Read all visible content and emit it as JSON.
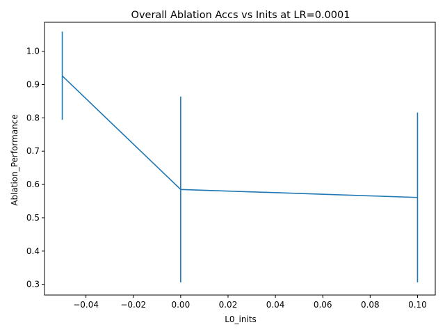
{
  "chart_data": {
    "type": "line",
    "title": "Overall Ablation Accs vs Inits at LR=0.0001",
    "xlabel": "L0_inits",
    "ylabel": "Ablation_Performance",
    "xlim": [
      -0.0575,
      0.1075
    ],
    "ylim": [
      0.268,
      1.087
    ],
    "xticks": [
      -0.04,
      -0.02,
      0.0,
      0.02,
      0.04,
      0.06,
      0.08,
      0.1
    ],
    "xtick_labels": [
      "−0.04",
      "−0.02",
      "0.00",
      "0.02",
      "0.04",
      "0.06",
      "0.08",
      "0.10"
    ],
    "yticks": [
      0.3,
      0.4,
      0.5,
      0.6,
      0.7,
      0.8,
      0.9,
      1.0
    ],
    "ytick_labels": [
      "0.3",
      "0.4",
      "0.5",
      "0.6",
      "0.7",
      "0.8",
      "0.9",
      "1.0"
    ],
    "grid": false,
    "series": [
      {
        "x": [
          -0.05,
          0.0,
          0.1
        ],
        "y": [
          0.926,
          0.585,
          0.561
        ],
        "yerr_low": [
          0.794,
          0.306,
          0.306
        ],
        "yerr_high": [
          1.059,
          0.864,
          0.816
        ],
        "color": "#1f77b4"
      }
    ]
  }
}
